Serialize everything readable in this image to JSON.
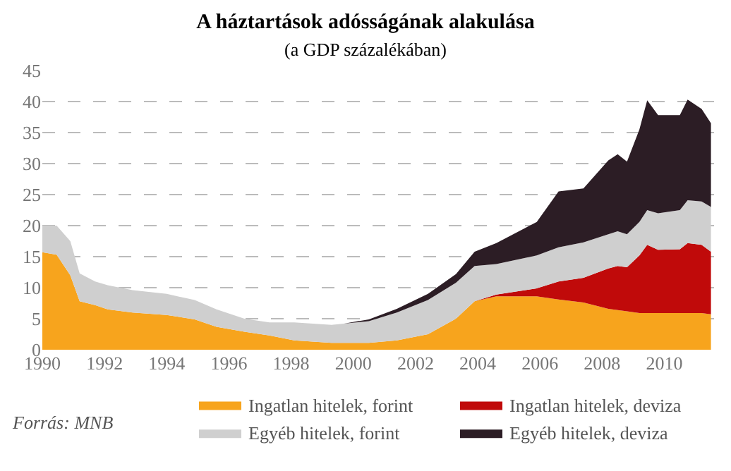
{
  "chart_data": {
    "type": "area",
    "stacked": true,
    "title": "A háztartások adósságának alakulása",
    "subtitle": "(a GDP százalékában)",
    "x": [
      1990.0,
      1990.46,
      1990.9,
      1991.2,
      1991.7,
      1992.1,
      1992.9,
      1994.0,
      1994.9,
      1995.6,
      1996.5,
      1997.3,
      1998.1,
      1999.3,
      1999.7,
      2000.5,
      2001.4,
      2002.4,
      2003.3,
      2003.9,
      2004.6,
      2005.9,
      2006.6,
      2007.4,
      2008.2,
      2008.5,
      2008.8,
      2009.2,
      2009.45,
      2009.8,
      2010.5,
      2010.75,
      2011.2,
      2011.5
    ],
    "series": [
      {
        "name": "Ingatlan hitelek, forint",
        "color": "#f7a41d",
        "values": [
          15.7,
          15.3,
          12.0,
          7.8,
          7.2,
          6.5,
          6.0,
          5.6,
          4.9,
          3.7,
          2.9,
          2.3,
          1.5,
          1.1,
          1.1,
          1.1,
          1.5,
          2.5,
          5.0,
          7.8,
          8.6,
          8.6,
          8.1,
          7.6,
          6.6,
          6.4,
          6.2,
          5.9,
          5.9,
          5.9,
          5.9,
          5.9,
          5.9,
          5.7
        ]
      },
      {
        "name": "Ingatlan hitelek, deviza",
        "color": "#c00a0a",
        "values": [
          0,
          0,
          0,
          0,
          0,
          0,
          0,
          0,
          0,
          0,
          0,
          0,
          0,
          0,
          0,
          0,
          0,
          0,
          0,
          0,
          0.3,
          1.3,
          2.9,
          4.0,
          6.5,
          7.1,
          7.1,
          9.3,
          11.0,
          10.2,
          10.3,
          11.3,
          11.0,
          10.1
        ]
      },
      {
        "name": "Egyéb hitelek, forint",
        "color": "#cfcfcf",
        "values": [
          4.3,
          4.7,
          5.5,
          4.5,
          3.8,
          3.9,
          3.6,
          3.4,
          3.1,
          2.8,
          2.1,
          2.1,
          2.9,
          2.9,
          3.1,
          3.5,
          4.5,
          5.5,
          5.8,
          5.7,
          4.9,
          5.3,
          5.5,
          5.7,
          5.5,
          5.6,
          5.3,
          5.4,
          5.6,
          5.9,
          6.3,
          6.9,
          7.0,
          7.2
        ]
      },
      {
        "name": "Egyéb hitelek, deviza",
        "color": "#2c1d25",
        "values": [
          0,
          0,
          0,
          0,
          0,
          0,
          0,
          0,
          0,
          0,
          0,
          0,
          0,
          0,
          0,
          0.3,
          0.6,
          1.0,
          1.4,
          2.3,
          3.4,
          5.4,
          9.0,
          8.7,
          11.9,
          12.4,
          11.7,
          14.9,
          17.7,
          15.8,
          15.3,
          16.2,
          14.9,
          13.5
        ]
      }
    ],
    "xlim": [
      1990,
      2011.6
    ],
    "xticks": [
      1990,
      1992,
      1994,
      1996,
      1998,
      2000,
      2002,
      2004,
      2006,
      2008,
      2010
    ],
    "ylim": [
      0,
      45
    ],
    "yticks": [
      0,
      5,
      10,
      15,
      20,
      25,
      30,
      35,
      40,
      45
    ],
    "grid": "y",
    "legend": "bottom right",
    "annotations": [
      "Forrás: MNB"
    ]
  }
}
